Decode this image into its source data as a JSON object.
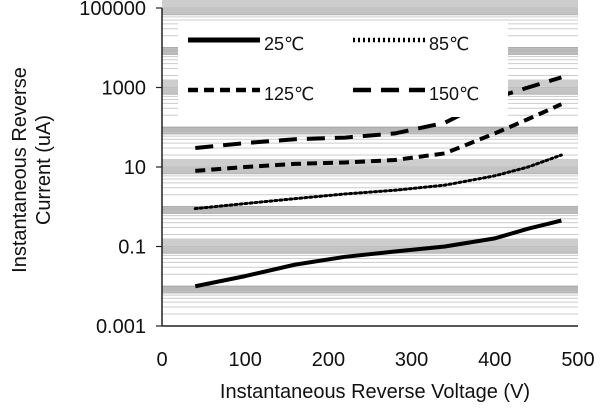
{
  "chart_data": {
    "type": "line",
    "xlabel": "Instantaneous Reverse Voltage (V)",
    "ylabel_line1": "Instantaneous Reverse",
    "ylabel_line2": "Current (uA)",
    "x_ticks": [
      "0",
      "100",
      "200",
      "300",
      "400",
      "500"
    ],
    "y_ticks": [
      "0.001",
      "0.1",
      "10",
      "1000",
      "100000"
    ],
    "xlim": [
      0,
      500
    ],
    "ylim": [
      0.001,
      100000
    ],
    "y_scale": "log",
    "grid": "horizontal minor gridlines",
    "legend_position": "top-left, inside plot",
    "series": [
      {
        "name": "25℃",
        "style": "solid",
        "color": "#000000",
        "x": [
          40,
          100,
          160,
          220,
          280,
          340,
          400,
          440,
          480
        ],
        "y": [
          0.01,
          0.018,
          0.035,
          0.055,
          0.075,
          0.1,
          0.16,
          0.28,
          0.45
        ]
      },
      {
        "name": "85℃",
        "style": "dotted",
        "color": "#000000",
        "x": [
          40,
          100,
          160,
          220,
          280,
          340,
          400,
          440,
          480
        ],
        "y": [
          0.9,
          1.2,
          1.6,
          2.1,
          2.6,
          3.5,
          6,
          10,
          20
        ]
      },
      {
        "name": "125℃",
        "style": "short-dash",
        "color": "#000000",
        "x": [
          40,
          100,
          160,
          220,
          280,
          340,
          400,
          440,
          480
        ],
        "y": [
          8,
          10,
          12,
          13,
          15,
          22,
          70,
          160,
          380
        ]
      },
      {
        "name": "150℃",
        "style": "long-dash",
        "color": "#000000",
        "x": [
          40,
          100,
          160,
          220,
          280,
          340,
          400,
          440,
          480
        ],
        "y": [
          30,
          40,
          50,
          55,
          70,
          130,
          550,
          1000,
          1800
        ]
      }
    ]
  }
}
